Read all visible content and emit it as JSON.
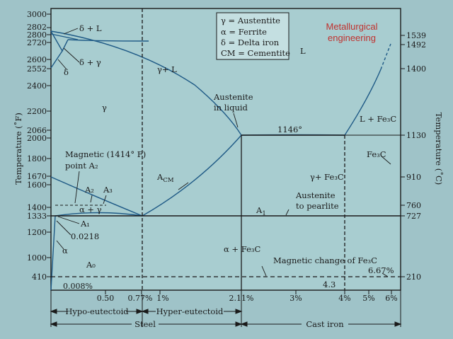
{
  "brand": {
    "line1": "Metallurgical",
    "line2": "engineering",
    "color": "#c0322f"
  },
  "legend": [
    "γ = Austentite",
    "α = Ferrite",
    "δ = Delta iron",
    "CM = Cementite"
  ],
  "axes": {
    "left_label": "Temperature (˚F)",
    "right_label": "Temperature (˚C)",
    "left_ticks": [
      "3000",
      "2802",
      "2800",
      "2720",
      "2600",
      "2552",
      "2400",
      "2200",
      "2066",
      "2000",
      "1800",
      "1670",
      "1600",
      "1400",
      "1333",
      "1200",
      "1000",
      "410"
    ],
    "right_ticks": [
      "1539",
      "1492",
      "1400",
      "1130",
      "910",
      "760",
      "727",
      "210"
    ],
    "bottom_ticks": [
      "0.008%",
      "0.50",
      "0.77%",
      "1%",
      "2.11%",
      "3%",
      "4%",
      "5%",
      "6%"
    ]
  },
  "regions": {
    "delta_liquid": "δ + L",
    "delta_gamma": "δ + γ",
    "delta": "δ",
    "liquid": "L",
    "gamma_liquid": "γ+ L",
    "gamma": "γ",
    "austenite_in_liquid_1": "Austenite",
    "austenite_in_liquid_2": "in liquid",
    "liquid_fe3c": "L + Fe₃C",
    "eutectic_temp": "1146°",
    "fe3c": "Fe₃C",
    "magnetic_1": "Magnetic (1414° F)",
    "magnetic_2": "point A₂",
    "acm": "A",
    "acm_sub": "CM",
    "gamma_fe3c": "γ+ Fe₃C",
    "a2": "A₂",
    "a3": "A₃",
    "alpha_gamma": "α + γ",
    "austenite_pearlite_1": "Austenite",
    "austenite_pearlite_2": "to pearlite",
    "a1_line": "A",
    "a1_line_sub": "1",
    "a1_left": "A₁",
    "val_0218": "0.0218",
    "alpha": "α",
    "alpha_fe3c": "α + Fe₃C",
    "magnetic_change": "Magnetic change of Fe₃C",
    "a0": "A₀",
    "pct_667": "6.67%",
    "val_43": "4.3"
  },
  "bottom_sections": {
    "hypo": "Hypo-eutectoid",
    "hyper": "Hyper-eutectoid",
    "steel": "Steel",
    "cast_iron": "Cast iron"
  }
}
